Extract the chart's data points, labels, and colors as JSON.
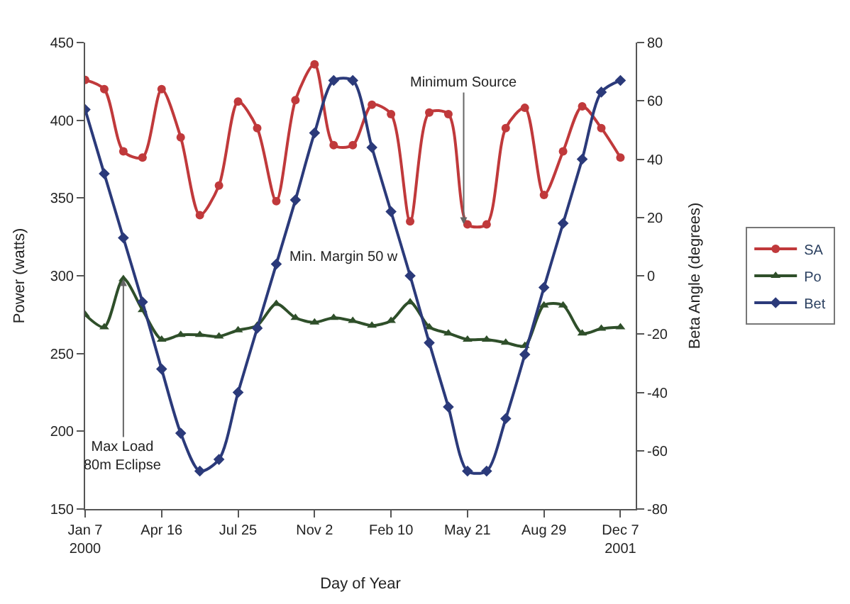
{
  "chart_data": {
    "type": "line",
    "xlabel": "Day of Year",
    "ylabel": "Power (watts)",
    "y2label": "Beta Angle (degrees)",
    "x": [
      "2000-01-07",
      "2000-02-01",
      "2000-02-26",
      "2000-03-22",
      "2000-04-16",
      "2000-05-11",
      "2000-06-05",
      "2000-06-30",
      "2000-07-25",
      "2000-08-19",
      "2000-09-13",
      "2000-10-08",
      "2000-11-02",
      "2000-11-27",
      "2000-12-22",
      "2001-01-16",
      "2001-02-10",
      "2001-03-07",
      "2001-04-01",
      "2001-04-26",
      "2001-05-21",
      "2001-06-15",
      "2001-07-10",
      "2001-08-04",
      "2001-08-29",
      "2001-09-23",
      "2001-10-18",
      "2001-11-12",
      "2001-12-07"
    ],
    "series": [
      {
        "name": "SA",
        "color": "#c0393b",
        "marker": "circle",
        "values": [
          426,
          420,
          380,
          376,
          420,
          389,
          339,
          358,
          412,
          395,
          348,
          413,
          436,
          384,
          384,
          410,
          404,
          335,
          405,
          404,
          333,
          333,
          395,
          408,
          352,
          380,
          409,
          395,
          376
        ]
      },
      {
        "name": "Po",
        "color": "#2f4f2a",
        "marker": "triangle",
        "values": [
          275,
          267,
          298,
          278,
          259,
          262,
          262,
          261,
          265,
          268,
          282,
          273,
          270,
          273,
          271,
          268,
          271,
          283,
          267,
          263,
          259,
          259,
          257,
          255,
          281,
          281,
          263,
          266,
          267
        ]
      },
      {
        "name": "Bet",
        "color": "#2b3a7a",
        "marker": "diamond",
        "axis": "y2",
        "values": [
          57,
          35,
          13,
          -9,
          -32,
          -54,
          -67,
          -63,
          -40,
          -18,
          4,
          26,
          49,
          67,
          67,
          44,
          22,
          0,
          -23,
          -45,
          -67,
          -67,
          -49,
          -27,
          -4,
          18,
          40,
          63,
          67
        ]
      }
    ],
    "xlim": [
      "2000-01-07",
      "2001-12-27"
    ],
    "xticks": [
      {
        "value": "2000-01-07",
        "label": "Jan 7\n2000"
      },
      {
        "value": "2000-04-16",
        "label": "Apr 16"
      },
      {
        "value": "2000-07-25",
        "label": "Jul 25"
      },
      {
        "value": "2000-11-02",
        "label": "Nov 2"
      },
      {
        "value": "2001-02-10",
        "label": "Feb 10"
      },
      {
        "value": "2001-05-21",
        "label": "May 21"
      },
      {
        "value": "2001-08-29",
        "label": "Aug 29"
      },
      {
        "value": "2001-12-07",
        "label": "Dec 7\n2001"
      }
    ],
    "ylim": [
      150,
      450
    ],
    "yticks": [
      150,
      200,
      250,
      300,
      350,
      400,
      450
    ],
    "y2lim": [
      -80,
      80
    ],
    "y2ticks": [
      -80,
      -60,
      -40,
      -20,
      0,
      20,
      40,
      60,
      80
    ],
    "annotations": [
      {
        "text": "Minimum Source",
        "x": "2001-05-16",
        "y": 333
      },
      {
        "text": "Max Load\n80m Eclipse",
        "x": "2000-02-26",
        "y": 298
      },
      "Min. Margin 50 w"
    ],
    "legend": "right",
    "line_style": "solid"
  }
}
